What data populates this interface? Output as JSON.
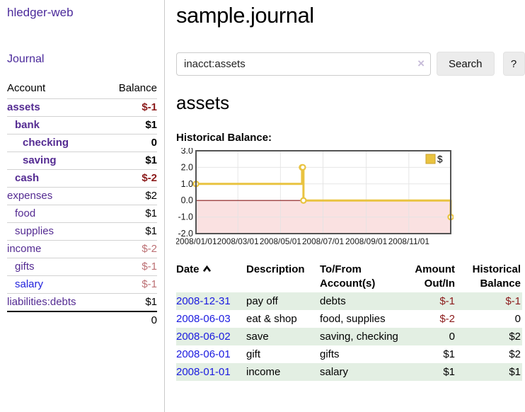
{
  "app": {
    "title": "hledger-web"
  },
  "colors": {
    "link_purple": "#542b92",
    "link_blue": "#1a1ae0",
    "negative_strong": "#8b1a1a",
    "negative_soft": "#bc7074",
    "row_green": "#e3efe3",
    "series_gold": "#e9c340",
    "series_gold_border": "#c9a22e",
    "below_zero_pink": "#fbdbdb",
    "zero_line_red": "#8b1a1a",
    "chart_border": "#545454"
  },
  "sidebar": {
    "nav": {
      "journal_label": "Journal"
    },
    "accounts_table": {
      "headers": {
        "account": "Account",
        "balance": "Balance"
      },
      "rows": [
        {
          "account": "assets",
          "balance": "$-1",
          "depth": 1,
          "bold": true,
          "negative": "strong"
        },
        {
          "account": "bank",
          "balance": "$1",
          "depth": 2,
          "bold": true,
          "negative": "none"
        },
        {
          "account": "checking",
          "balance": "0",
          "depth": 3,
          "bold": true,
          "negative": "none"
        },
        {
          "account": "saving",
          "balance": "$1",
          "depth": 3,
          "bold": true,
          "negative": "none"
        },
        {
          "account": "cash",
          "balance": "$-2",
          "depth": 2,
          "bold": true,
          "negative": "strong"
        },
        {
          "account": "expenses",
          "balance": "$2",
          "depth": 1,
          "bold": false,
          "negative": "none"
        },
        {
          "account": "food",
          "balance": "$1",
          "depth": 2,
          "bold": false,
          "negative": "none"
        },
        {
          "account": "supplies",
          "balance": "$1",
          "depth": 2,
          "bold": false,
          "negative": "none"
        },
        {
          "account": "income",
          "balance": "$-2",
          "depth": 1,
          "bold": false,
          "negative": "soft"
        },
        {
          "account": "gifts",
          "balance": "$-1",
          "depth": 2,
          "bold": false,
          "negative": "soft"
        },
        {
          "account": "salary",
          "balance": "$-1",
          "depth": 2,
          "bold": false,
          "negative": "soft",
          "link_color": "blue"
        },
        {
          "account": "liabilities:debts",
          "balance": "$1",
          "depth": 1,
          "bold": false,
          "negative": "none"
        }
      ],
      "total": "0"
    }
  },
  "main": {
    "page_title": "sample.journal",
    "search": {
      "value": "inacct:assets",
      "clear_icon": "×",
      "search_button": "Search",
      "help_button": "?"
    },
    "account_heading": "assets",
    "chart_label": "Historical Balance:"
  },
  "chart_data": {
    "type": "line",
    "title": "Historical Balance",
    "style": "steps",
    "series": [
      {
        "name": "$",
        "color": "#e9c340",
        "points": [
          [
            "2008-01-01",
            1
          ],
          [
            "2008-06-01",
            2
          ],
          [
            "2008-06-02",
            2
          ],
          [
            "2008-06-03",
            0
          ],
          [
            "2008-12-31",
            -1
          ]
        ]
      }
    ],
    "x_range": [
      "2008-01-01",
      "2008-12-31"
    ],
    "x_ticks": [
      "2008/01/01",
      "2008/03/01",
      "2008/05/01",
      "2008/07/01",
      "2008/09/01",
      "2008/11/01"
    ],
    "y_ticks": [
      "3.0",
      "2.0",
      "1.0",
      "0.0",
      "-1.0",
      "-2.0"
    ],
    "ylim": [
      -2,
      3
    ],
    "grid": true,
    "legend": {
      "label": "$",
      "position": "top-right"
    },
    "shaded_region": {
      "below": 0,
      "color": "#f6c9c9"
    },
    "zero_line": true
  },
  "register": {
    "headers": {
      "date": "Date",
      "description": "Description",
      "accounts": "To/From Account(s)",
      "amount": "Amount Out/In",
      "balance": "Historical Balance"
    },
    "sort": {
      "column": "date",
      "direction": "ascending"
    },
    "rows": [
      {
        "date": "2008-12-31",
        "description": "pay off",
        "accounts": "debts",
        "amount": "$-1",
        "amount_negative": true,
        "balance": "$-1",
        "balance_negative": true
      },
      {
        "date": "2008-06-03",
        "description": "eat & shop",
        "accounts": "food, supplies",
        "amount": "$-2",
        "amount_negative": true,
        "balance": "0",
        "balance_negative": false
      },
      {
        "date": "2008-06-02",
        "description": "save",
        "accounts": "saving, checking",
        "amount": "0",
        "amount_negative": false,
        "balance": "$2",
        "balance_negative": false
      },
      {
        "date": "2008-06-01",
        "description": "gift",
        "accounts": "gifts",
        "amount": "$1",
        "amount_negative": false,
        "balance": "$2",
        "balance_negative": false
      },
      {
        "date": "2008-01-01",
        "description": "income",
        "accounts": "salary",
        "amount": "$1",
        "amount_negative": false,
        "balance": "$1",
        "balance_negative": false
      }
    ]
  }
}
